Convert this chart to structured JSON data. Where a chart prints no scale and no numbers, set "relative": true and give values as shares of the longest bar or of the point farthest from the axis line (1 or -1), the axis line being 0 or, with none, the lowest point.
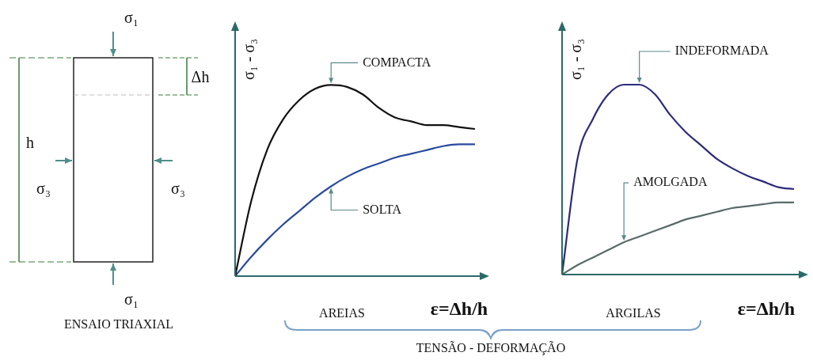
{
  "chart_data": [
    {
      "type": "other",
      "title": "ENSAIO TRIAXIAL",
      "annotations": [
        "σ₁",
        "σ₁",
        "σ₃",
        "σ₃",
        "Δh",
        "h"
      ]
    },
    {
      "type": "line",
      "relative": true,
      "ylabel": "σ₁ - σ₃",
      "xlabel": "ε=Δh/h",
      "marker": "none",
      "categories": [
        null,
        null,
        null,
        null,
        null,
        null,
        null,
        null,
        null,
        null,
        null,
        null,
        null,
        null,
        null,
        null
      ],
      "series": [
        {
          "name": "COMPACTA",
          "color": "#111111",
          "values": [
            0,
            0.39,
            0.66,
            0.82,
            0.92,
            0.98,
            1,
            0.99,
            0.95,
            0.88,
            0.83,
            0.81,
            0.79,
            0.79,
            0.78,
            0.77
          ]
        },
        {
          "name": "SOLTA",
          "color": "#2a4aa0",
          "values": [
            0,
            0.1,
            0.19,
            0.27,
            0.34,
            0.41,
            0.47,
            0.52,
            0.56,
            0.59,
            0.62,
            0.64,
            0.66,
            0.68,
            0.69,
            0.69
          ]
        }
      ],
      "annotations": [
        "AREIAS"
      ]
    },
    {
      "type": "line",
      "relative": true,
      "ylabel": "σ₁ - σ₃",
      "xlabel": "ε=Δh/h",
      "marker": "none",
      "categories": [
        null,
        null,
        null,
        null,
        null,
        null,
        null,
        null,
        null,
        null,
        null,
        null,
        null,
        null,
        null,
        null
      ],
      "series": [
        {
          "name": "INDEFORMADA",
          "color": "#2c2a7a",
          "values": [
            0,
            0.61,
            0.82,
            0.95,
            1,
            1,
            0.95,
            0.84,
            0.75,
            0.68,
            0.61,
            0.56,
            0.52,
            0.49,
            0.46,
            0.45
          ]
        },
        {
          "name": "AMOLGADA",
          "color": "#5a6a6a",
          "values": [
            0,
            0.05,
            0.09,
            0.13,
            0.17,
            0.2,
            0.23,
            0.26,
            0.29,
            0.31,
            0.33,
            0.35,
            0.36,
            0.37,
            0.38,
            0.38
          ]
        }
      ],
      "annotations": [
        "ARGILAS",
        "TENSÃO - DEFORMAÇÃO"
      ]
    }
  ]
}
